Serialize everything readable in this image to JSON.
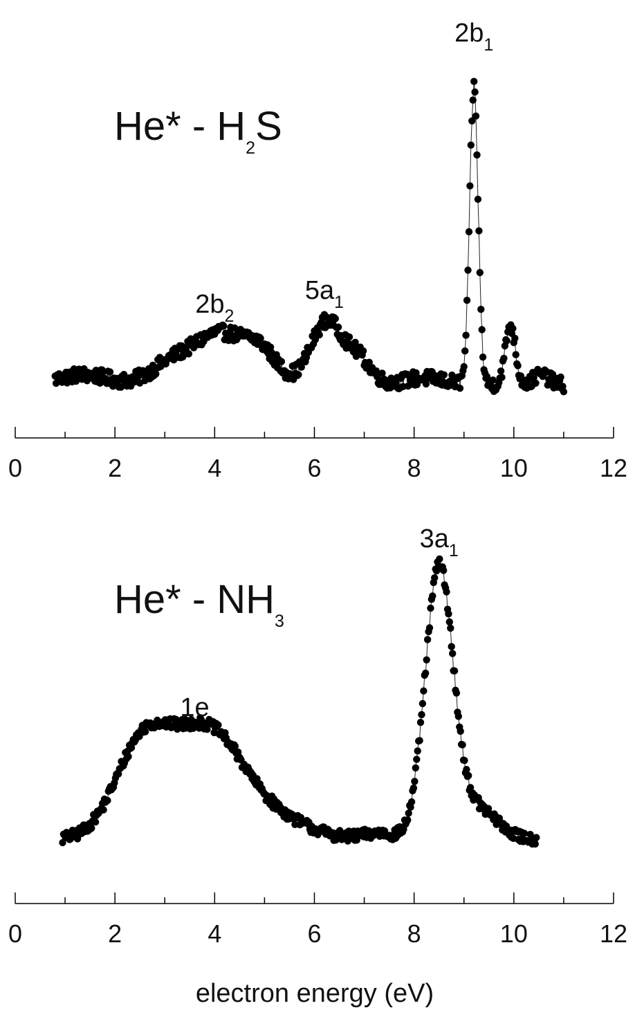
{
  "chart_data": [
    {
      "type": "scatter",
      "title": "He* - H2S",
      "title_parts": {
        "main": "He* - H",
        "sub": "2",
        "tail": "S"
      },
      "xlabel": "",
      "xlim": [
        0,
        12
      ],
      "x_ticks": [
        0,
        2,
        4,
        6,
        8,
        10,
        12
      ],
      "y_axis_shown": false,
      "grid": false,
      "legend": "none",
      "marker_color": "#000000",
      "annotations": [
        {
          "text": "2b2",
          "main": "2b",
          "sub": "2",
          "x": 4.0
        },
        {
          "text": "5a1",
          "main": "5a",
          "sub": "1",
          "x": 6.2
        },
        {
          "text": "2b1",
          "main": "2b",
          "sub": "1",
          "x": 9.2
        }
      ],
      "profile": {
        "x_range": [
          0.8,
          11.0
        ],
        "baseline": 0.06,
        "peaks": [
          {
            "center": 1.35,
            "height": 0.03,
            "width": 0.5
          },
          {
            "center": 3.2,
            "height": 0.07,
            "width": 0.45
          },
          {
            "center": 4.1,
            "height": 0.14,
            "width": 0.45
          },
          {
            "center": 4.9,
            "height": 0.1,
            "width": 0.35
          },
          {
            "center": 6.25,
            "height": 0.19,
            "width": 0.32
          },
          {
            "center": 6.9,
            "height": 0.07,
            "width": 0.25
          },
          {
            "center": 8.2,
            "height": 0.02,
            "width": 0.4
          },
          {
            "center": 9.2,
            "height": 0.89,
            "width": 0.085
          },
          {
            "center": 9.93,
            "height": 0.18,
            "width": 0.1
          },
          {
            "center": 10.55,
            "height": 0.03,
            "width": 0.15
          }
        ],
        "noise": 0.022,
        "step": 0.02
      }
    },
    {
      "type": "scatter",
      "title": "He* - NH3",
      "title_parts": {
        "main": "He* - NH",
        "sub": "3",
        "tail": ""
      },
      "xlabel": "electron energy (eV)",
      "xlim": [
        0,
        12
      ],
      "x_ticks": [
        0,
        2,
        4,
        6,
        8,
        10,
        12
      ],
      "y_axis_shown": false,
      "grid": false,
      "legend": "none",
      "marker_color": "#000000",
      "annotations": [
        {
          "text": "1e",
          "main": "1e",
          "sub": "",
          "x": 3.6
        },
        {
          "text": "3a1",
          "main": "3a",
          "sub": "1",
          "x": 8.5
        }
      ],
      "profile": {
        "x_range": [
          0.95,
          10.45
        ],
        "baseline": 0.05,
        "peaks": [
          {
            "center": 2.55,
            "height": 0.29,
            "width": 0.55
          },
          {
            "center": 3.85,
            "height": 0.34,
            "width": 0.7
          },
          {
            "center": 5.2,
            "height": 0.06,
            "width": 0.7
          },
          {
            "center": 7.3,
            "height": 0.02,
            "width": 0.3
          },
          {
            "center": 8.5,
            "height": 0.86,
            "width": 0.28
          },
          {
            "center": 9.25,
            "height": 0.1,
            "width": 0.4
          }
        ],
        "noise": 0.018,
        "step": 0.02
      }
    }
  ]
}
